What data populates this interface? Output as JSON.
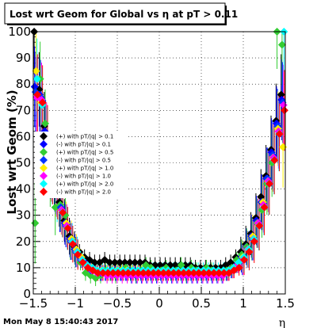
{
  "chart_data": {
    "type": "scatter",
    "title": "Lost wrt Geom for Global vs   η at pT > 0.11",
    "xlabel": "η",
    "ylabel": "Lost wrt Geom (%)",
    "xlim": [
      -1.5,
      1.5
    ],
    "ylim": [
      0,
      100
    ],
    "x_ticks": [
      -1.5,
      -1,
      -0.5,
      0,
      0.5,
      1,
      1.5
    ],
    "x_tick_labels": [
      "−1.5",
      "−1",
      "−0.5",
      "0",
      "0.5",
      "1",
      "1.5"
    ],
    "y_ticks": [
      0,
      10,
      20,
      30,
      40,
      50,
      60,
      70,
      80,
      90,
      100
    ],
    "y_tick_labels": [
      "0",
      "10",
      "20",
      "30",
      "40",
      "50",
      "60",
      "70",
      "80",
      "90",
      "100"
    ],
    "grid": true,
    "legend_position": "middle-left",
    "x": [
      -1.47,
      -1.41,
      -1.35,
      -1.29,
      -1.23,
      -1.17,
      -1.11,
      -1.05,
      -0.99,
      -0.93,
      -0.87,
      -0.81,
      -0.75,
      -0.69,
      -0.63,
      -0.57,
      -0.51,
      -0.45,
      -0.39,
      -0.33,
      -0.27,
      -0.21,
      -0.15,
      -0.09,
      -0.03,
      0.03,
      0.09,
      0.15,
      0.21,
      0.27,
      0.33,
      0.39,
      0.45,
      0.51,
      0.57,
      0.63,
      0.69,
      0.75,
      0.81,
      0.87,
      0.93,
      0.99,
      1.05,
      1.11,
      1.17,
      1.23,
      1.29,
      1.35,
      1.41,
      1.47
    ],
    "series": [
      {
        "name": "(+) with pT/|q| > 0.1",
        "color": "#000000",
        "marker": "diamond",
        "values": [
          100,
          78,
          64,
          50,
          43,
          35,
          28,
          22,
          18,
          16,
          14,
          13,
          12,
          12,
          13,
          12,
          12,
          12,
          12,
          12,
          12,
          12,
          12,
          11,
          11,
          11,
          11,
          11,
          11,
          11,
          11,
          11,
          10,
          10,
          10,
          10,
          10,
          10,
          11,
          12,
          14,
          16,
          19,
          23,
          29,
          37,
          45,
          55,
          66,
          76
        ]
      },
      {
        "name": "(-) with pT/|q| > 0.1",
        "color": "#0000ff",
        "marker": "diamond",
        "values": [
          79,
          76,
          62,
          49,
          42,
          33,
          27,
          21,
          17,
          14,
          12,
          10,
          9,
          8,
          8,
          8,
          8,
          8,
          8,
          8,
          8,
          8,
          8,
          8,
          8,
          8,
          8,
          8,
          8,
          8,
          8,
          8,
          8,
          8,
          8,
          8,
          8,
          8,
          8,
          9,
          11,
          14,
          18,
          22,
          28,
          35,
          44,
          54,
          65,
          74
        ]
      },
      {
        "name": "(+) with pT/|q| > 0.5",
        "color": "#33cc33",
        "marker": "diamond",
        "values": [
          27,
          82,
          65,
          45,
          33,
          34,
          30,
          20,
          16,
          12,
          8,
          7,
          6,
          7,
          9,
          8,
          7,
          9,
          10,
          8,
          7,
          9,
          11,
          10,
          8,
          9,
          10,
          8,
          9,
          11,
          7,
          10,
          9,
          8,
          10,
          9,
          8,
          8,
          9,
          10,
          13,
          15,
          18,
          21,
          27,
          32,
          42,
          50,
          100,
          95
        ]
      },
      {
        "name": "(-) with pT/|q| > 0.5",
        "color": "#0033ff",
        "marker": "diamond",
        "values": [
          77,
          75,
          61,
          48,
          41,
          33,
          26,
          20,
          16,
          13,
          11,
          9,
          9,
          8,
          8,
          8,
          8,
          8,
          8,
          7,
          7,
          7,
          7,
          7,
          7,
          7,
          7,
          7,
          7,
          7,
          7,
          7,
          7,
          7,
          7,
          7,
          7,
          7,
          8,
          9,
          11,
          13,
          17,
          21,
          27,
          35,
          44,
          53,
          64,
          73
        ]
      },
      {
        "name": "(+) with pT/|q| > 1.0",
        "color": "#ffee00",
        "marker": "diamond",
        "values": [
          85,
          73,
          60,
          47,
          40,
          32,
          27,
          21,
          17,
          14,
          11,
          10,
          9,
          9,
          8,
          8,
          9,
          9,
          9,
          8,
          8,
          8,
          8,
          8,
          8,
          8,
          8,
          8,
          8,
          8,
          8,
          8,
          8,
          8,
          8,
          8,
          8,
          8,
          8,
          9,
          11,
          14,
          17,
          22,
          27,
          35,
          43,
          52,
          63,
          56
        ]
      },
      {
        "name": "(-) with pT/|q| > 1.0",
        "color": "#ff00ff",
        "marker": "diamond",
        "values": [
          75,
          74,
          60,
          47,
          40,
          32,
          26,
          20,
          16,
          13,
          11,
          9,
          8,
          8,
          7,
          7,
          7,
          7,
          7,
          7,
          7,
          7,
          7,
          7,
          7,
          7,
          7,
          7,
          7,
          7,
          7,
          7,
          7,
          7,
          7,
          7,
          7,
          7,
          8,
          9,
          11,
          13,
          17,
          21,
          27,
          34,
          43,
          52,
          62,
          72
        ]
      },
      {
        "name": "(+) with pT/|q| > 2.0",
        "color": "#00ffff",
        "marker": "diamond",
        "values": [
          82,
          72,
          58,
          46,
          38,
          31,
          25,
          20,
          16,
          13,
          11,
          10,
          9,
          9,
          9,
          9,
          9,
          9,
          9,
          9,
          9,
          9,
          9,
          9,
          9,
          9,
          9,
          9,
          9,
          9,
          9,
          9,
          9,
          9,
          9,
          9,
          9,
          9,
          9,
          10,
          12,
          14,
          17,
          21,
          26,
          33,
          42,
          51,
          61,
          100
        ]
      },
      {
        "name": "(-) with pT/|q| > 2.0",
        "color": "#ff0000",
        "marker": "diamond",
        "values": [
          76,
          73,
          59,
          46,
          39,
          31,
          25,
          19,
          15,
          12,
          10,
          9,
          8,
          8,
          8,
          8,
          8,
          8,
          8,
          8,
          8,
          8,
          8,
          8,
          8,
          8,
          8,
          8,
          8,
          8,
          8,
          8,
          8,
          8,
          8,
          8,
          8,
          8,
          8,
          9,
          10,
          13,
          16,
          20,
          26,
          33,
          42,
          51,
          61,
          70
        ]
      }
    ]
  },
  "footer": {
    "timestamp": "Mon May  8 15:40:43 2017"
  }
}
